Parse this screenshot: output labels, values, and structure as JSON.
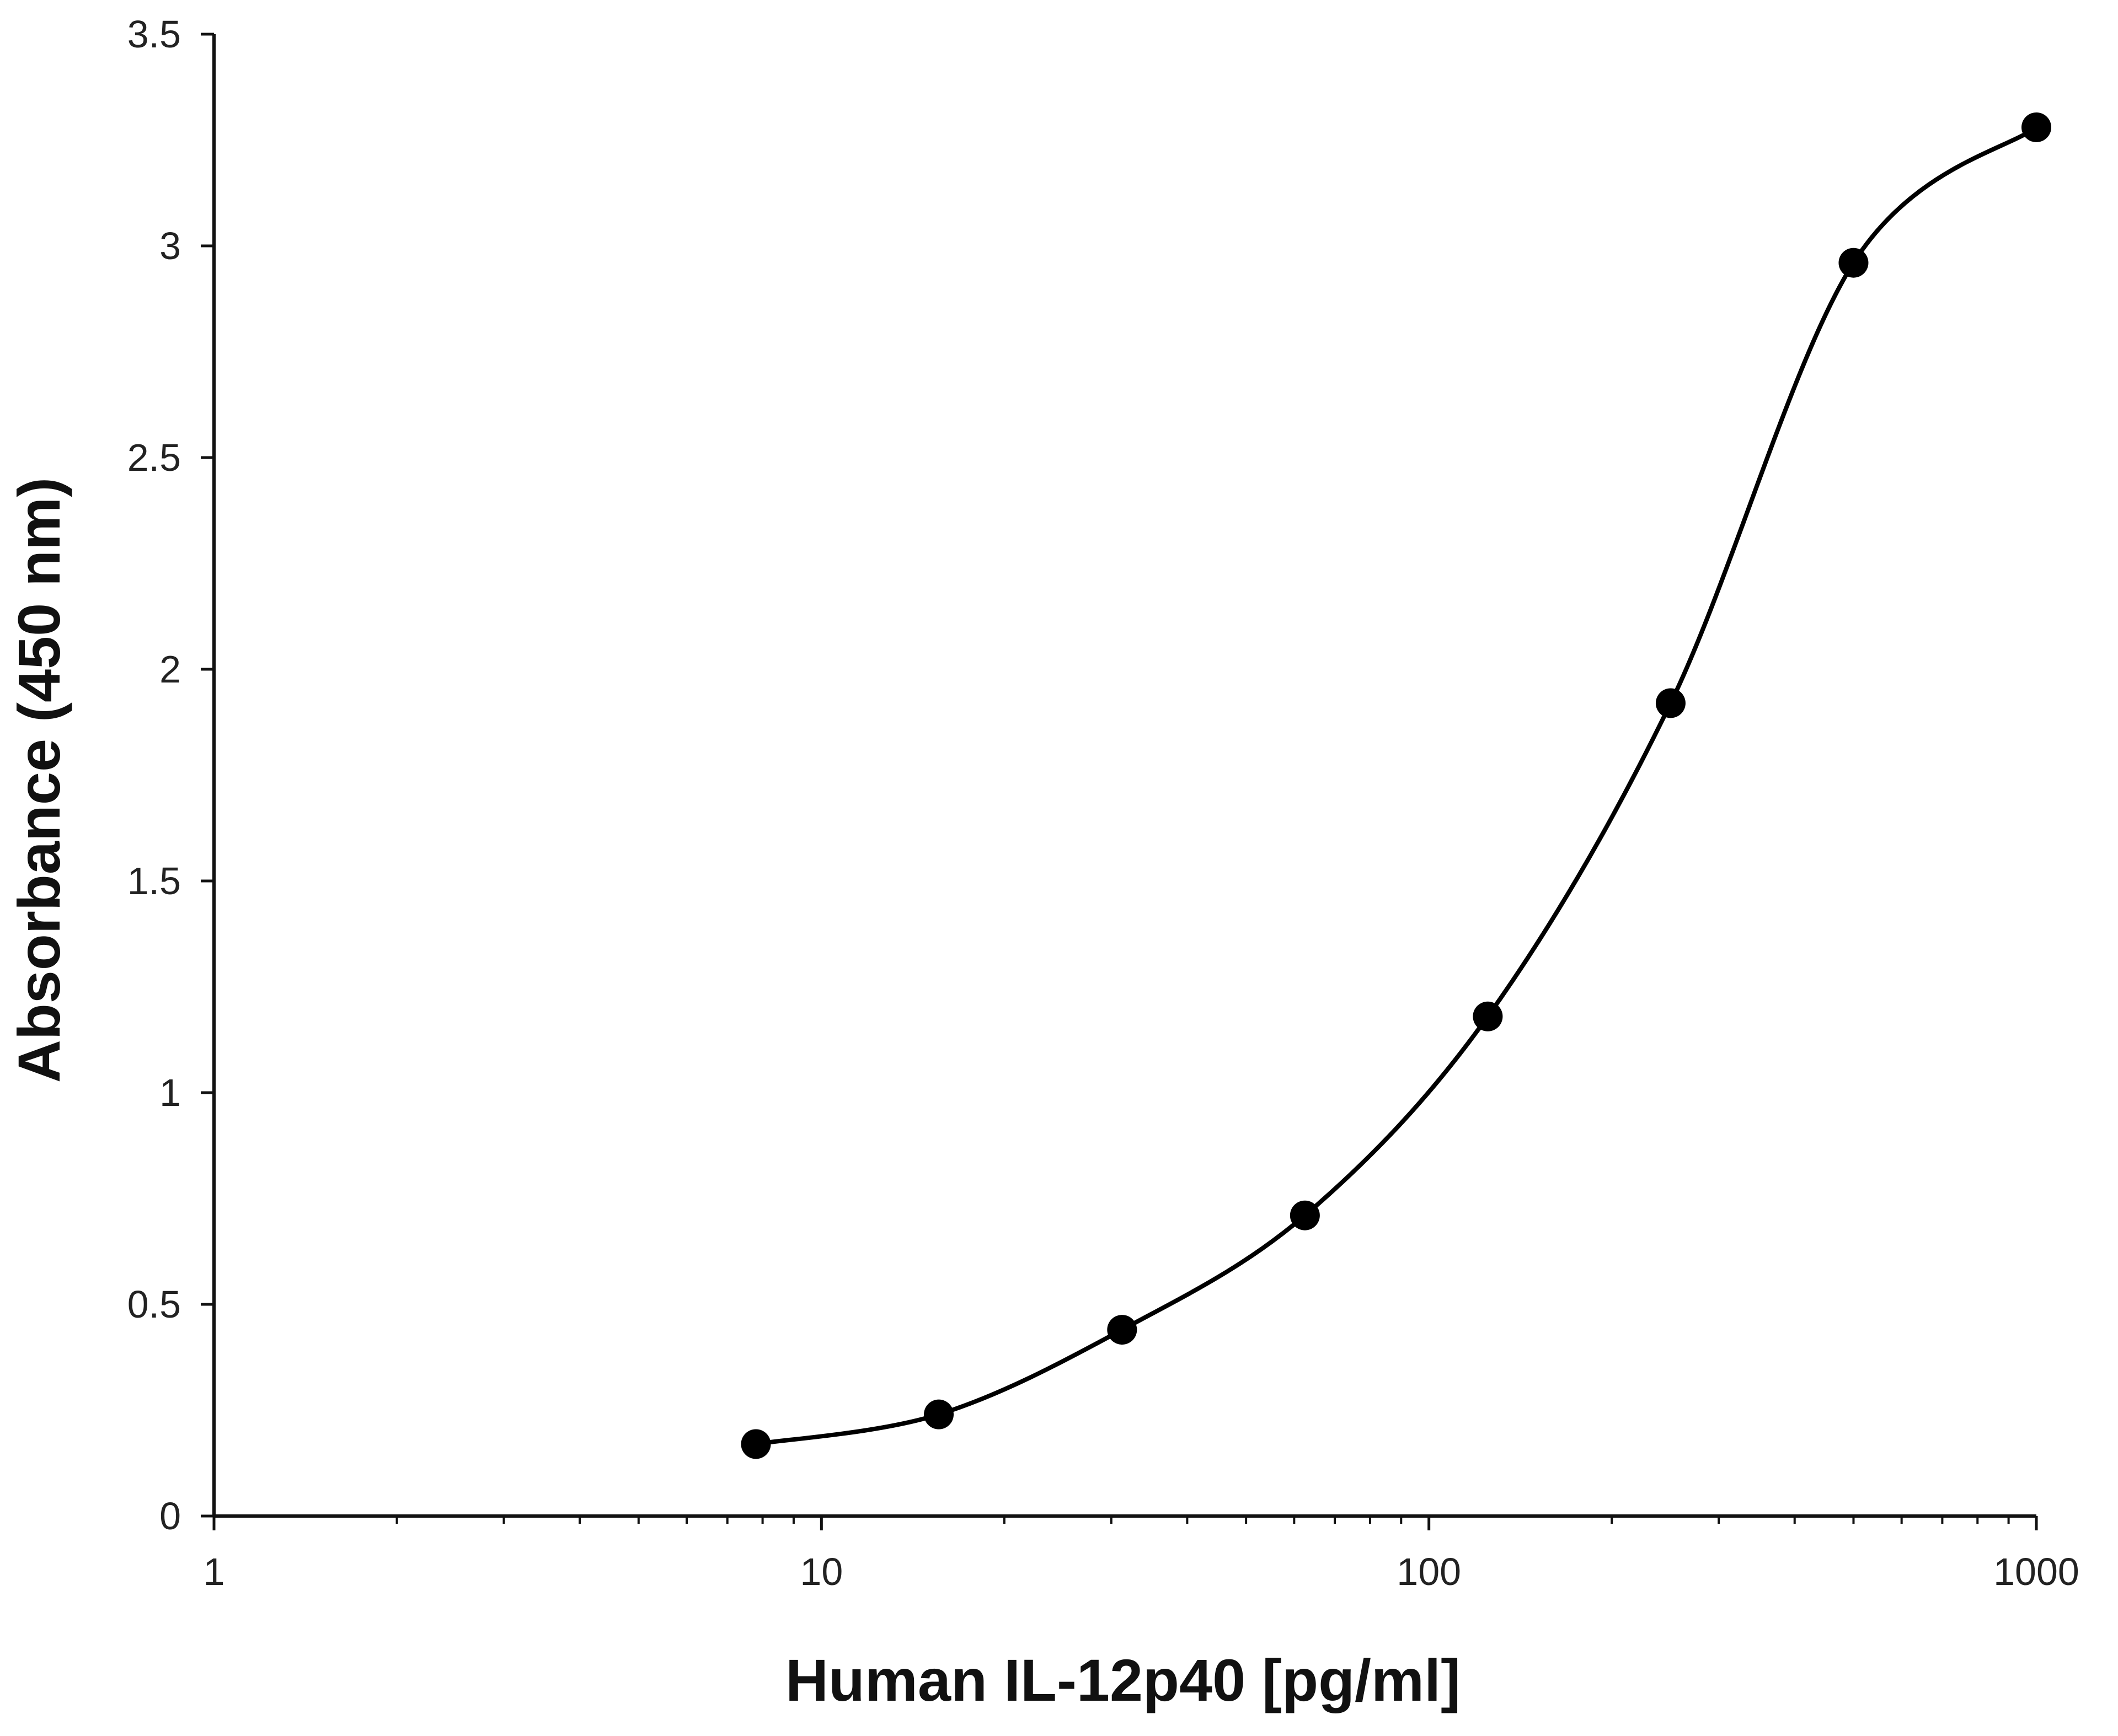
{
  "chart_data": {
    "type": "scatter",
    "title": "",
    "xlabel": "Human IL-12p40 [pg/ml]",
    "ylabel": "Absorbance (450 nm)",
    "x_scale": "log",
    "xlim": [
      1,
      1000
    ],
    "ylim": [
      0,
      3.5
    ],
    "x_ticks": [
      "1",
      "10",
      "100",
      "1000"
    ],
    "y_ticks": [
      "0",
      "0.5",
      "1",
      "1.5",
      "2",
      "2.5",
      "3",
      "3.5"
    ],
    "grid": false,
    "legend": "none",
    "smoothed_line": true,
    "line_color": "#000000",
    "marker_color": "#000000",
    "series": [
      {
        "x": [
          7.8,
          15.6,
          31.25,
          62.5,
          125,
          250,
          500,
          1000
        ],
        "y": [
          0.17,
          0.24,
          0.44,
          0.71,
          1.18,
          1.92,
          2.96,
          3.28
        ]
      }
    ]
  }
}
